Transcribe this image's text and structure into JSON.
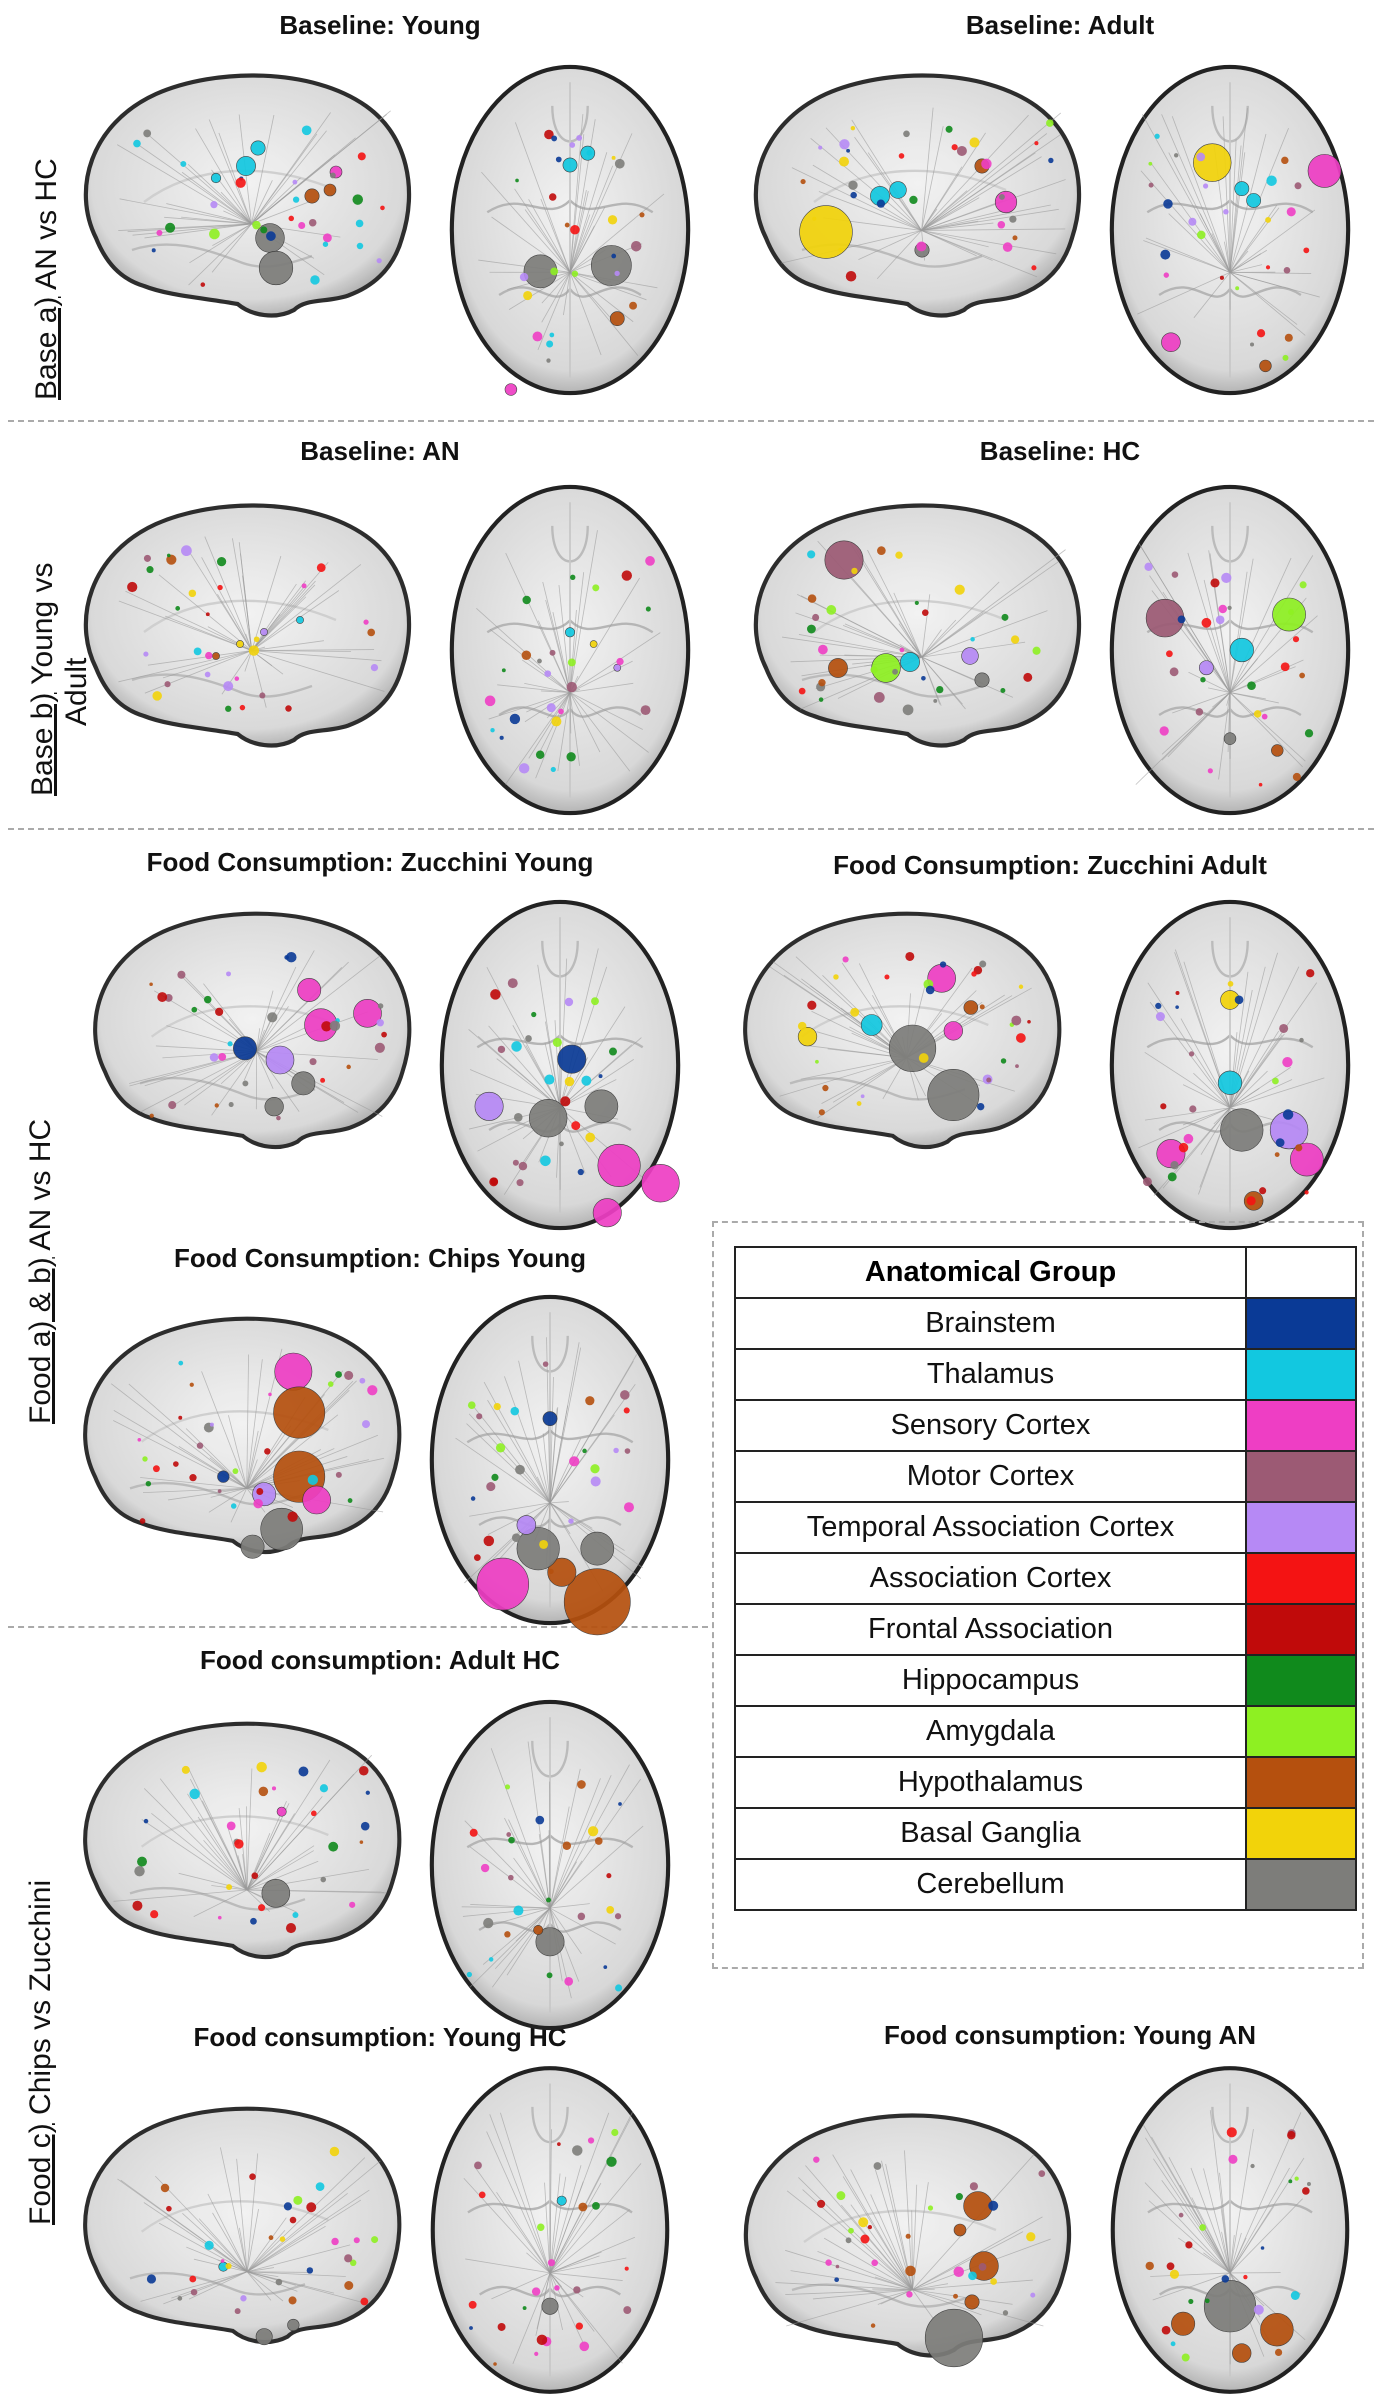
{
  "row_labels": {
    "base_a": {
      "underlined": "Base a)",
      "rest": " AN vs HC"
    },
    "base_b": {
      "underlined": "Base b)",
      "rest": " Young  vs",
      "line2": "Adult"
    },
    "food_ab": {
      "underlined": "Food a) & b)",
      "rest": " AN vs HC"
    },
    "food_c": {
      "underlined": "Food c)",
      "rest": " Chips vs Zucchini"
    }
  },
  "panels": [
    {
      "title": "Baseline:  Young"
    },
    {
      "title": "Baseline: Adult"
    },
    {
      "title": "Baseline: AN"
    },
    {
      "title": "Baseline: HC"
    },
    {
      "title": "Food Consumption: Zucchini Young"
    },
    {
      "title": "Food Consumption: Zucchini Adult"
    },
    {
      "title": "Food Consumption: Chips Young"
    },
    {
      "title": "Food consumption: Adult HC"
    },
    {
      "title": "Food consumption: Young HC"
    },
    {
      "title": "Food consumption: Young AN"
    }
  ],
  "legend": {
    "header": "Anatomical Group",
    "groups": [
      {
        "name": "Brainstem",
        "color": "#0a3a96"
      },
      {
        "name": "Thalamus",
        "color": "#12c8e0"
      },
      {
        "name": "Sensory Cortex",
        "color": "#ee3ec4"
      },
      {
        "name": "Motor Cortex",
        "color": "#9c5a74"
      },
      {
        "name": "Temporal Association Cortex",
        "color": "#b689f5"
      },
      {
        "name": "Association Cortex",
        "color": "#f41313"
      },
      {
        "name": "Frontal Association",
        "color": "#c00a0a"
      },
      {
        "name": "Hippocampus",
        "color": "#108a1c"
      },
      {
        "name": "Amygdala",
        "color": "#8ef022"
      },
      {
        "name": "Hypothalamus",
        "color": "#b5500e"
      },
      {
        "name": "Basal Ganglia",
        "color": "#f2d30a"
      },
      {
        "name": "Cerebellum",
        "color": "#7d7d7a"
      }
    ]
  }
}
